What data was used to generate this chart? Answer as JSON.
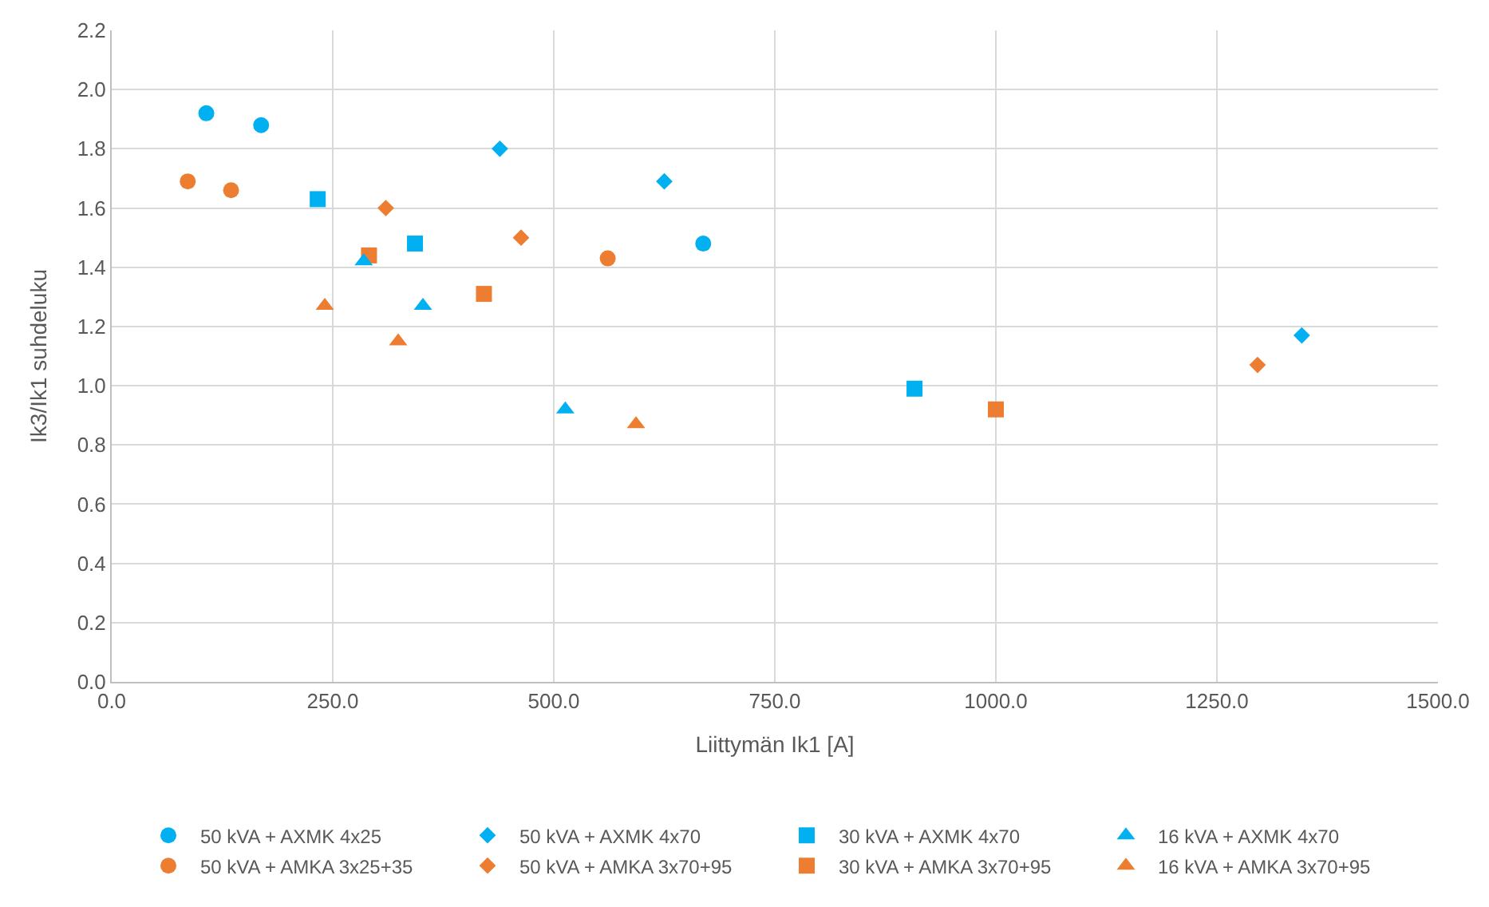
{
  "chart_data": {
    "type": "scatter",
    "xlabel": "Liittymän Ik1 [A]",
    "ylabel": "Ik3/Ik1 suhdeluku",
    "xlim": [
      0,
      1500
    ],
    "ylim": [
      0,
      2.2
    ],
    "xticks": [
      {
        "value": 0,
        "label": "0.0"
      },
      {
        "value": 250,
        "label": "250.0"
      },
      {
        "value": 500,
        "label": "500.0"
      },
      {
        "value": 750,
        "label": "750.0"
      },
      {
        "value": 1000,
        "label": "1000.0"
      },
      {
        "value": 1250,
        "label": "1250.0"
      },
      {
        "value": 1500,
        "label": "1500.0"
      }
    ],
    "yticks": [
      {
        "value": 0,
        "label": "0.0"
      },
      0.2,
      0.4,
      0.6,
      0.8,
      {
        "value": 1,
        "label": "1.0"
      },
      1.2,
      1.4,
      1.6,
      1.8,
      {
        "value": 2,
        "label": "2.0"
      },
      2.2
    ],
    "grid": true,
    "legend": "bottom",
    "series": [
      {
        "name": "50 kVA + AXMK 4x25",
        "color": "#00b0f0",
        "marker": "circle",
        "x": [
          107,
          169,
          669
        ],
        "values": [
          1.92,
          1.88,
          1.48
        ]
      },
      {
        "name": "50 kVA + AXMK 4x70",
        "color": "#00b0f0",
        "marker": "diamond",
        "x": [
          439,
          625,
          1346
        ],
        "values": [
          1.8,
          1.69,
          1.17
        ]
      },
      {
        "name": "30 kVA + AXMK 4x70",
        "color": "#00b0f0",
        "marker": "square",
        "x": [
          233,
          343,
          908
        ],
        "values": [
          1.63,
          1.48,
          0.99
        ]
      },
      {
        "name": "16 kVA + AXMK 4x70",
        "color": "#00b0f0",
        "marker": "triangle",
        "x": [
          285,
          352,
          513
        ],
        "values": [
          1.42,
          1.27,
          0.92
        ]
      },
      {
        "name": "50 kVA + AMKA 3x25+35",
        "color": "#ed7d31",
        "marker": "circle",
        "x": [
          86,
          135,
          561
        ],
        "values": [
          1.69,
          1.66,
          1.43
        ]
      },
      {
        "name": "50 kVA + AMKA 3x70+95",
        "color": "#ed7d31",
        "marker": "diamond",
        "x": [
          310,
          463,
          1296
        ],
        "values": [
          1.6,
          1.5,
          1.07
        ]
      },
      {
        "name": "30 kVA + AMKA 3x70+95",
        "color": "#ed7d31",
        "marker": "square",
        "x": [
          291,
          421,
          1000
        ],
        "values": [
          1.44,
          1.31,
          0.92
        ]
      },
      {
        "name": "16 kVA + AMKA 3x70+95",
        "color": "#ed7d31",
        "marker": "triangle",
        "x": [
          241,
          324,
          593
        ],
        "values": [
          1.27,
          1.15,
          0.87
        ]
      }
    ]
  }
}
